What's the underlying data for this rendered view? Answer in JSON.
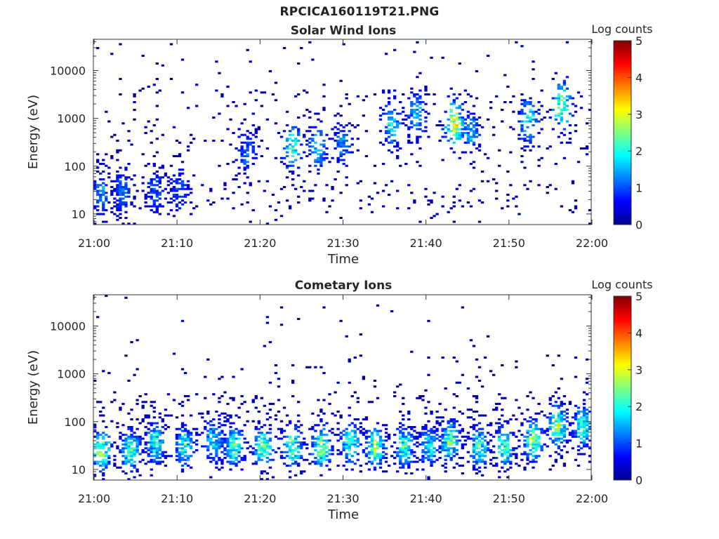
{
  "figure_title": "RPCICA160119T21.PNG",
  "chart_data": [
    {
      "type": "heatmap",
      "title": "Solar Wind Ions",
      "xlabel": "Time",
      "ylabel": "Energy (eV)",
      "x_range": [
        "21:00",
        "22:00"
      ],
      "x_ticks": [
        "21:00",
        "21:10",
        "21:20",
        "21:30",
        "21:40",
        "21:50",
        "22:00"
      ],
      "y_scale": "log",
      "y_range": [
        6,
        45000
      ],
      "y_ticks": [
        10,
        100,
        1000,
        10000
      ],
      "y_tick_labels": [
        "10",
        "100",
        "1000",
        "10000"
      ],
      "colorbar": {
        "label": "Log counts",
        "range": [
          0,
          5
        ],
        "ticks": [
          "0",
          "1",
          "2",
          "3",
          "4",
          "5"
        ],
        "colormap": "jet"
      },
      "hotspots": [
        {
          "t": 1.0,
          "e": 30,
          "v": 1.3
        },
        {
          "t": 3.5,
          "e": 30,
          "v": 1.1
        },
        {
          "t": 7.5,
          "e": 30,
          "v": 1.0
        },
        {
          "t": 10.5,
          "e": 30,
          "v": 1.0
        },
        {
          "t": 18.5,
          "e": 200,
          "v": 1.1
        },
        {
          "t": 24.0,
          "e": 250,
          "v": 2.0
        },
        {
          "t": 27.0,
          "e": 250,
          "v": 1.6
        },
        {
          "t": 30.0,
          "e": 300,
          "v": 1.2
        },
        {
          "t": 36.0,
          "e": 800,
          "v": 1.8
        },
        {
          "t": 39.0,
          "e": 1200,
          "v": 1.6
        },
        {
          "t": 43.5,
          "e": 800,
          "v": 3.0
        },
        {
          "t": 45.5,
          "e": 500,
          "v": 1.5
        },
        {
          "t": 52.5,
          "e": 900,
          "v": 2.0
        },
        {
          "t": 56.5,
          "e": 1800,
          "v": 2.6
        }
      ]
    },
    {
      "type": "heatmap",
      "title": "Cometary Ions",
      "xlabel": "Time",
      "ylabel": "Energy (eV)",
      "x_range": [
        "21:00",
        "22:00"
      ],
      "x_ticks": [
        "21:00",
        "21:10",
        "21:20",
        "21:30",
        "21:40",
        "21:50",
        "22:00"
      ],
      "y_scale": "log",
      "y_range": [
        6,
        45000
      ],
      "y_ticks": [
        10,
        100,
        1000,
        10000
      ],
      "y_tick_labels": [
        "10",
        "100",
        "1000",
        "10000"
      ],
      "colorbar": {
        "label": "Log counts",
        "range": [
          0,
          5
        ],
        "ticks": [
          "0",
          "1",
          "2",
          "3",
          "4",
          "5"
        ],
        "colormap": "jet"
      },
      "hotspots": [
        {
          "t": 1.0,
          "e": 25,
          "v": 2.6
        },
        {
          "t": 4.5,
          "e": 25,
          "v": 2.3
        },
        {
          "t": 7.5,
          "e": 35,
          "v": 2.0
        },
        {
          "t": 11.0,
          "e": 30,
          "v": 2.0
        },
        {
          "t": 14.5,
          "e": 40,
          "v": 1.8
        },
        {
          "t": 17.0,
          "e": 30,
          "v": 2.2
        },
        {
          "t": 20.5,
          "e": 30,
          "v": 2.5
        },
        {
          "t": 24.0,
          "e": 30,
          "v": 2.4
        },
        {
          "t": 27.5,
          "e": 30,
          "v": 2.6
        },
        {
          "t": 31.0,
          "e": 35,
          "v": 2.2
        },
        {
          "t": 34.0,
          "e": 30,
          "v": 2.5
        },
        {
          "t": 37.5,
          "e": 30,
          "v": 2.1
        },
        {
          "t": 40.5,
          "e": 30,
          "v": 1.9
        },
        {
          "t": 43.0,
          "e": 40,
          "v": 2.3
        },
        {
          "t": 46.5,
          "e": 30,
          "v": 2.1
        },
        {
          "t": 49.5,
          "e": 30,
          "v": 2.2
        },
        {
          "t": 53.0,
          "e": 40,
          "v": 2.5
        },
        {
          "t": 56.0,
          "e": 80,
          "v": 2.6
        },
        {
          "t": 59.0,
          "e": 80,
          "v": 2.2
        }
      ]
    }
  ]
}
